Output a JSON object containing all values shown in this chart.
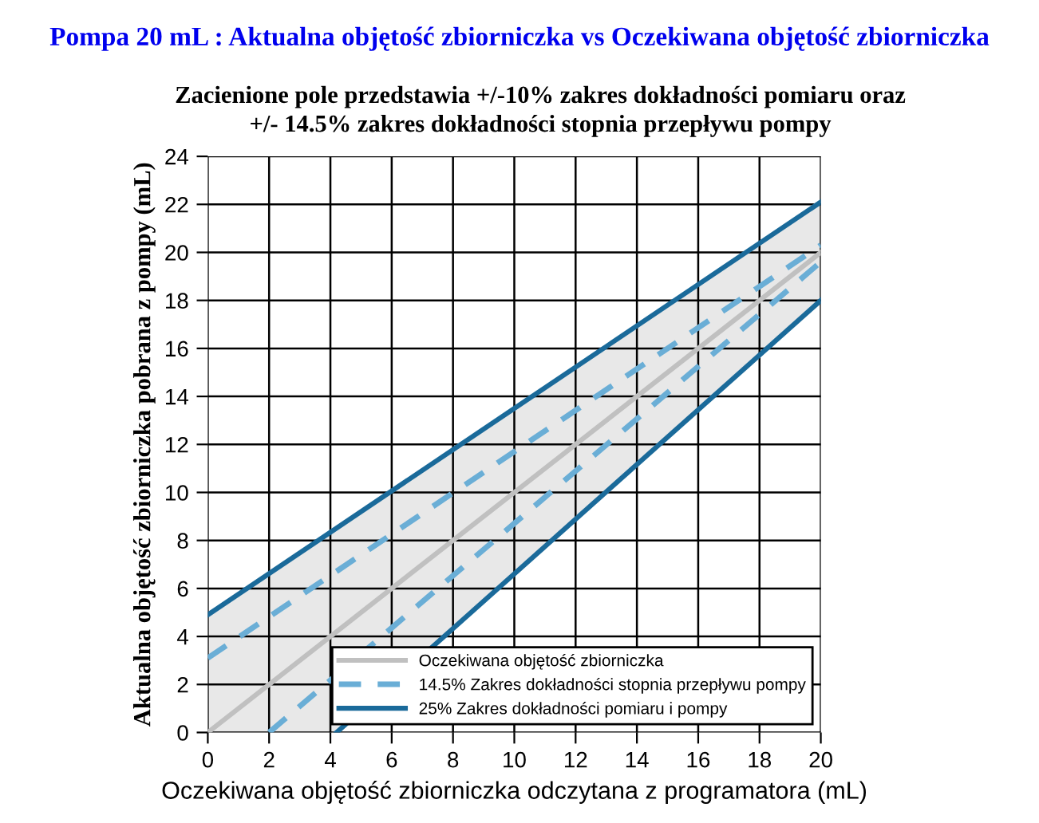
{
  "chart_data": {
    "type": "line",
    "title": "Pompa 20 mL : Aktualna objętość zbiorniczka vs Oczekiwana objętość zbiorniczka",
    "subtitle": "Zacienione pole przedstawia +/-10% zakres dokładności pomiaru oraz\n+/- 14.5% zakres dokładności stopnia przepływu pompy",
    "xlabel": "Oczekiwana objętość zbiorniczka odczytana z programatora (mL)",
    "ylabel": "Aktualna objętość zbiorniczka pobrana z pompy (mL)",
    "series": [
      {
        "name": "Oczekiwana objętość zbiorniczka",
        "color": "#c0c0c0",
        "line_style": "solid",
        "x": [
          0,
          4.2,
          20
        ],
        "values": [
          0,
          4.2,
          20
        ],
        "lower": [
          0,
          0,
          18
        ],
        "upper": [
          4.9,
          8.5,
          22.1
        ]
      },
      {
        "name": "14.5% Zakres dokładności stopnia przepływu pompy",
        "color": "#6aaed6",
        "line_style": "dashed",
        "x": [
          0,
          20
        ],
        "values": [
          3.1,
          20.3
        ]
      },
      {
        "color": "#6aaed6",
        "line_style": "dashed",
        "x": [
          2,
          20
        ],
        "values": [
          0,
          19.6
        ]
      },
      {
        "name": "25% Zakres dokładności pomiaru i pompy",
        "color": "#1a6a9a",
        "line_style": "solid",
        "x": [
          0,
          20
        ],
        "values": [
          4.9,
          22.1
        ]
      },
      {
        "color": "#1a6a9a",
        "line_style": "solid",
        "x": [
          4.2,
          20
        ],
        "values": [
          0,
          18
        ]
      }
    ],
    "xlim": [
      0,
      20
    ],
    "xticks": [
      0,
      2,
      4,
      6,
      8,
      10,
      12,
      14,
      16,
      18,
      20
    ],
    "ylim": [
      0,
      24
    ],
    "yticks": [
      0,
      2,
      4,
      6,
      8,
      10,
      12,
      14,
      16,
      18,
      20,
      22,
      24
    ],
    "grid": true,
    "legend": "bottom right",
    "marker": "none"
  }
}
